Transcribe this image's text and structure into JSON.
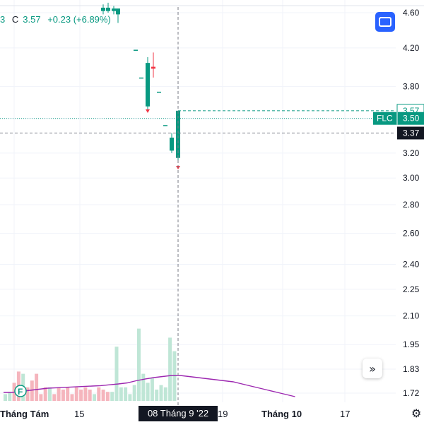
{
  "header": {
    "open_fragment": "3",
    "close_label": "C",
    "close_value": "3.57",
    "change": "+0.23 (+6.89%)"
  },
  "price_badges": {
    "last_price": "3.57",
    "symbol": "FLC",
    "symbol_price": "3.50",
    "crosshair_price": "3.37"
  },
  "crosshair": {
    "date_label": "08 Tháng 9 '22"
  },
  "colors": {
    "up": "#089981",
    "down": "#f23645",
    "volume_up": "#bfe6d6",
    "volume_down": "#f5b5bd",
    "ma_line": "#9c27b0",
    "accent": "#2962ff"
  },
  "icons": {
    "layout_button": "window-icon",
    "scroll_button": "double-chevron-right-icon",
    "settings": "gear-icon",
    "event_marker": "financials-icon"
  },
  "chart_data": {
    "type": "candlestick",
    "price_scale": "log",
    "y_ticks": [
      4.6,
      4.2,
      3.8,
      3.5,
      3.2,
      3.0,
      2.8,
      2.6,
      2.4,
      2.25,
      2.1,
      1.95,
      1.83,
      1.72
    ],
    "y_tick_labels": [
      "4.60",
      "4.20",
      "3.80",
      "3.50",
      "3.20",
      "3.00",
      "2.80",
      "2.60",
      "2.40",
      "2.25",
      "2.10",
      "1.95",
      "1.83",
      "1.72"
    ],
    "x_tick_labels": [
      "Tháng Tám",
      "15",
      "19",
      "Tháng 10",
      "17"
    ],
    "event_marker_label": "F",
    "candles": [
      {
        "o": 4.62,
        "h": 4.7,
        "l": 4.58,
        "c": 4.66
      },
      {
        "o": 4.66,
        "h": 4.72,
        "l": 4.6,
        "c": 4.62
      },
      {
        "o": 4.62,
        "h": 4.68,
        "l": 4.58,
        "c": 4.65
      },
      {
        "o": 4.65,
        "h": 4.65,
        "l": 4.48,
        "c": 4.58
      },
      {
        "o": 4.18,
        "h": 4.18,
        "l": 4.18,
        "c": 4.18
      },
      {
        "o": 3.89,
        "h": 3.89,
        "l": 3.89,
        "c": 3.89
      },
      {
        "o": 3.61,
        "h": 4.1,
        "l": 3.57,
        "c": 4.04
      },
      {
        "o": 4.0,
        "h": 4.15,
        "l": 3.89,
        "c": 3.98
      },
      {
        "o": 3.75,
        "h": 3.75,
        "l": 3.75,
        "c": 3.75
      },
      {
        "o": 3.44,
        "h": 3.44,
        "l": 3.44,
        "c": 3.44
      },
      {
        "o": 3.33,
        "h": 3.37,
        "l": 3.2,
        "c": 3.22
      },
      {
        "o": 3.16,
        "h": 3.57,
        "l": 3.14,
        "c": 3.57
      }
    ],
    "volume": [
      {
        "v": 3,
        "up": true
      },
      {
        "v": 4,
        "up": true
      },
      {
        "v": 8,
        "up": false
      },
      {
        "v": 13,
        "up": false
      },
      {
        "v": 12,
        "up": true
      },
      {
        "v": 6,
        "up": false
      },
      {
        "v": 9,
        "up": false
      },
      {
        "v": 12,
        "up": false
      },
      {
        "v": 3,
        "up": false
      },
      {
        "v": 6,
        "up": false
      },
      {
        "v": 6,
        "up": true
      },
      {
        "v": 3,
        "up": false
      },
      {
        "v": 6,
        "up": false
      },
      {
        "v": 5,
        "up": false
      },
      {
        "v": 6,
        "up": false
      },
      {
        "v": 3,
        "up": false
      },
      {
        "v": 6,
        "up": false
      },
      {
        "v": 5,
        "up": false
      },
      {
        "v": 6,
        "up": false
      },
      {
        "v": 5,
        "up": false
      },
      {
        "v": 3,
        "up": true
      },
      {
        "v": 6,
        "up": false
      },
      {
        "v": 5,
        "up": false
      },
      {
        "v": 4,
        "up": false
      },
      {
        "v": 4,
        "up": true
      },
      {
        "v": 24,
        "up": true
      },
      {
        "v": 6,
        "up": true
      },
      {
        "v": 6,
        "up": true
      },
      {
        "v": 3,
        "up": true
      },
      {
        "v": 7,
        "up": true
      },
      {
        "v": 32,
        "up": true
      },
      {
        "v": 12,
        "up": true
      },
      {
        "v": 8,
        "up": true
      },
      {
        "v": 10,
        "up": true
      },
      {
        "v": 5,
        "up": true
      },
      {
        "v": 7,
        "up": true
      },
      {
        "v": 6,
        "up": true
      },
      {
        "v": 28,
        "up": true
      },
      {
        "v": 22,
        "up": true
      }
    ],
    "moving_average": [
      4,
      4,
      4.5,
      5,
      5.5,
      6,
      6.2,
      6.4,
      6.6,
      6.8,
      7,
      7.2,
      7.6,
      8,
      8.5,
      9.5,
      10.3,
      11,
      11.5,
      12,
      12,
      11.5,
      11,
      10.5,
      10,
      9.5,
      9,
      8,
      7,
      6,
      5,
      4,
      3,
      2
    ]
  }
}
